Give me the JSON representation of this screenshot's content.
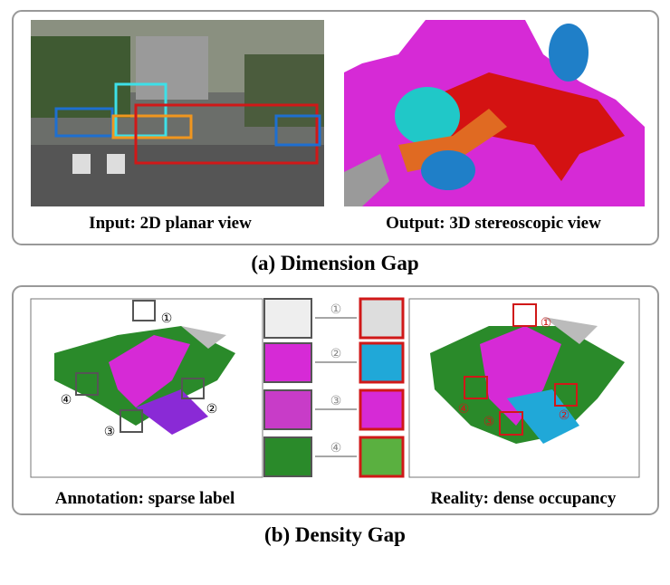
{
  "panel_a": {
    "input_caption": "Input: 2D planar view",
    "output_caption": "Output: 3D stereoscopic view",
    "title": "(a) Dimension Gap"
  },
  "panel_b": {
    "annotation_caption": "Annotation: sparse label",
    "reality_caption": "Reality: dense occupancy",
    "title": "(b) Density Gap",
    "markers": [
      "①",
      "②",
      "③",
      "④"
    ]
  }
}
